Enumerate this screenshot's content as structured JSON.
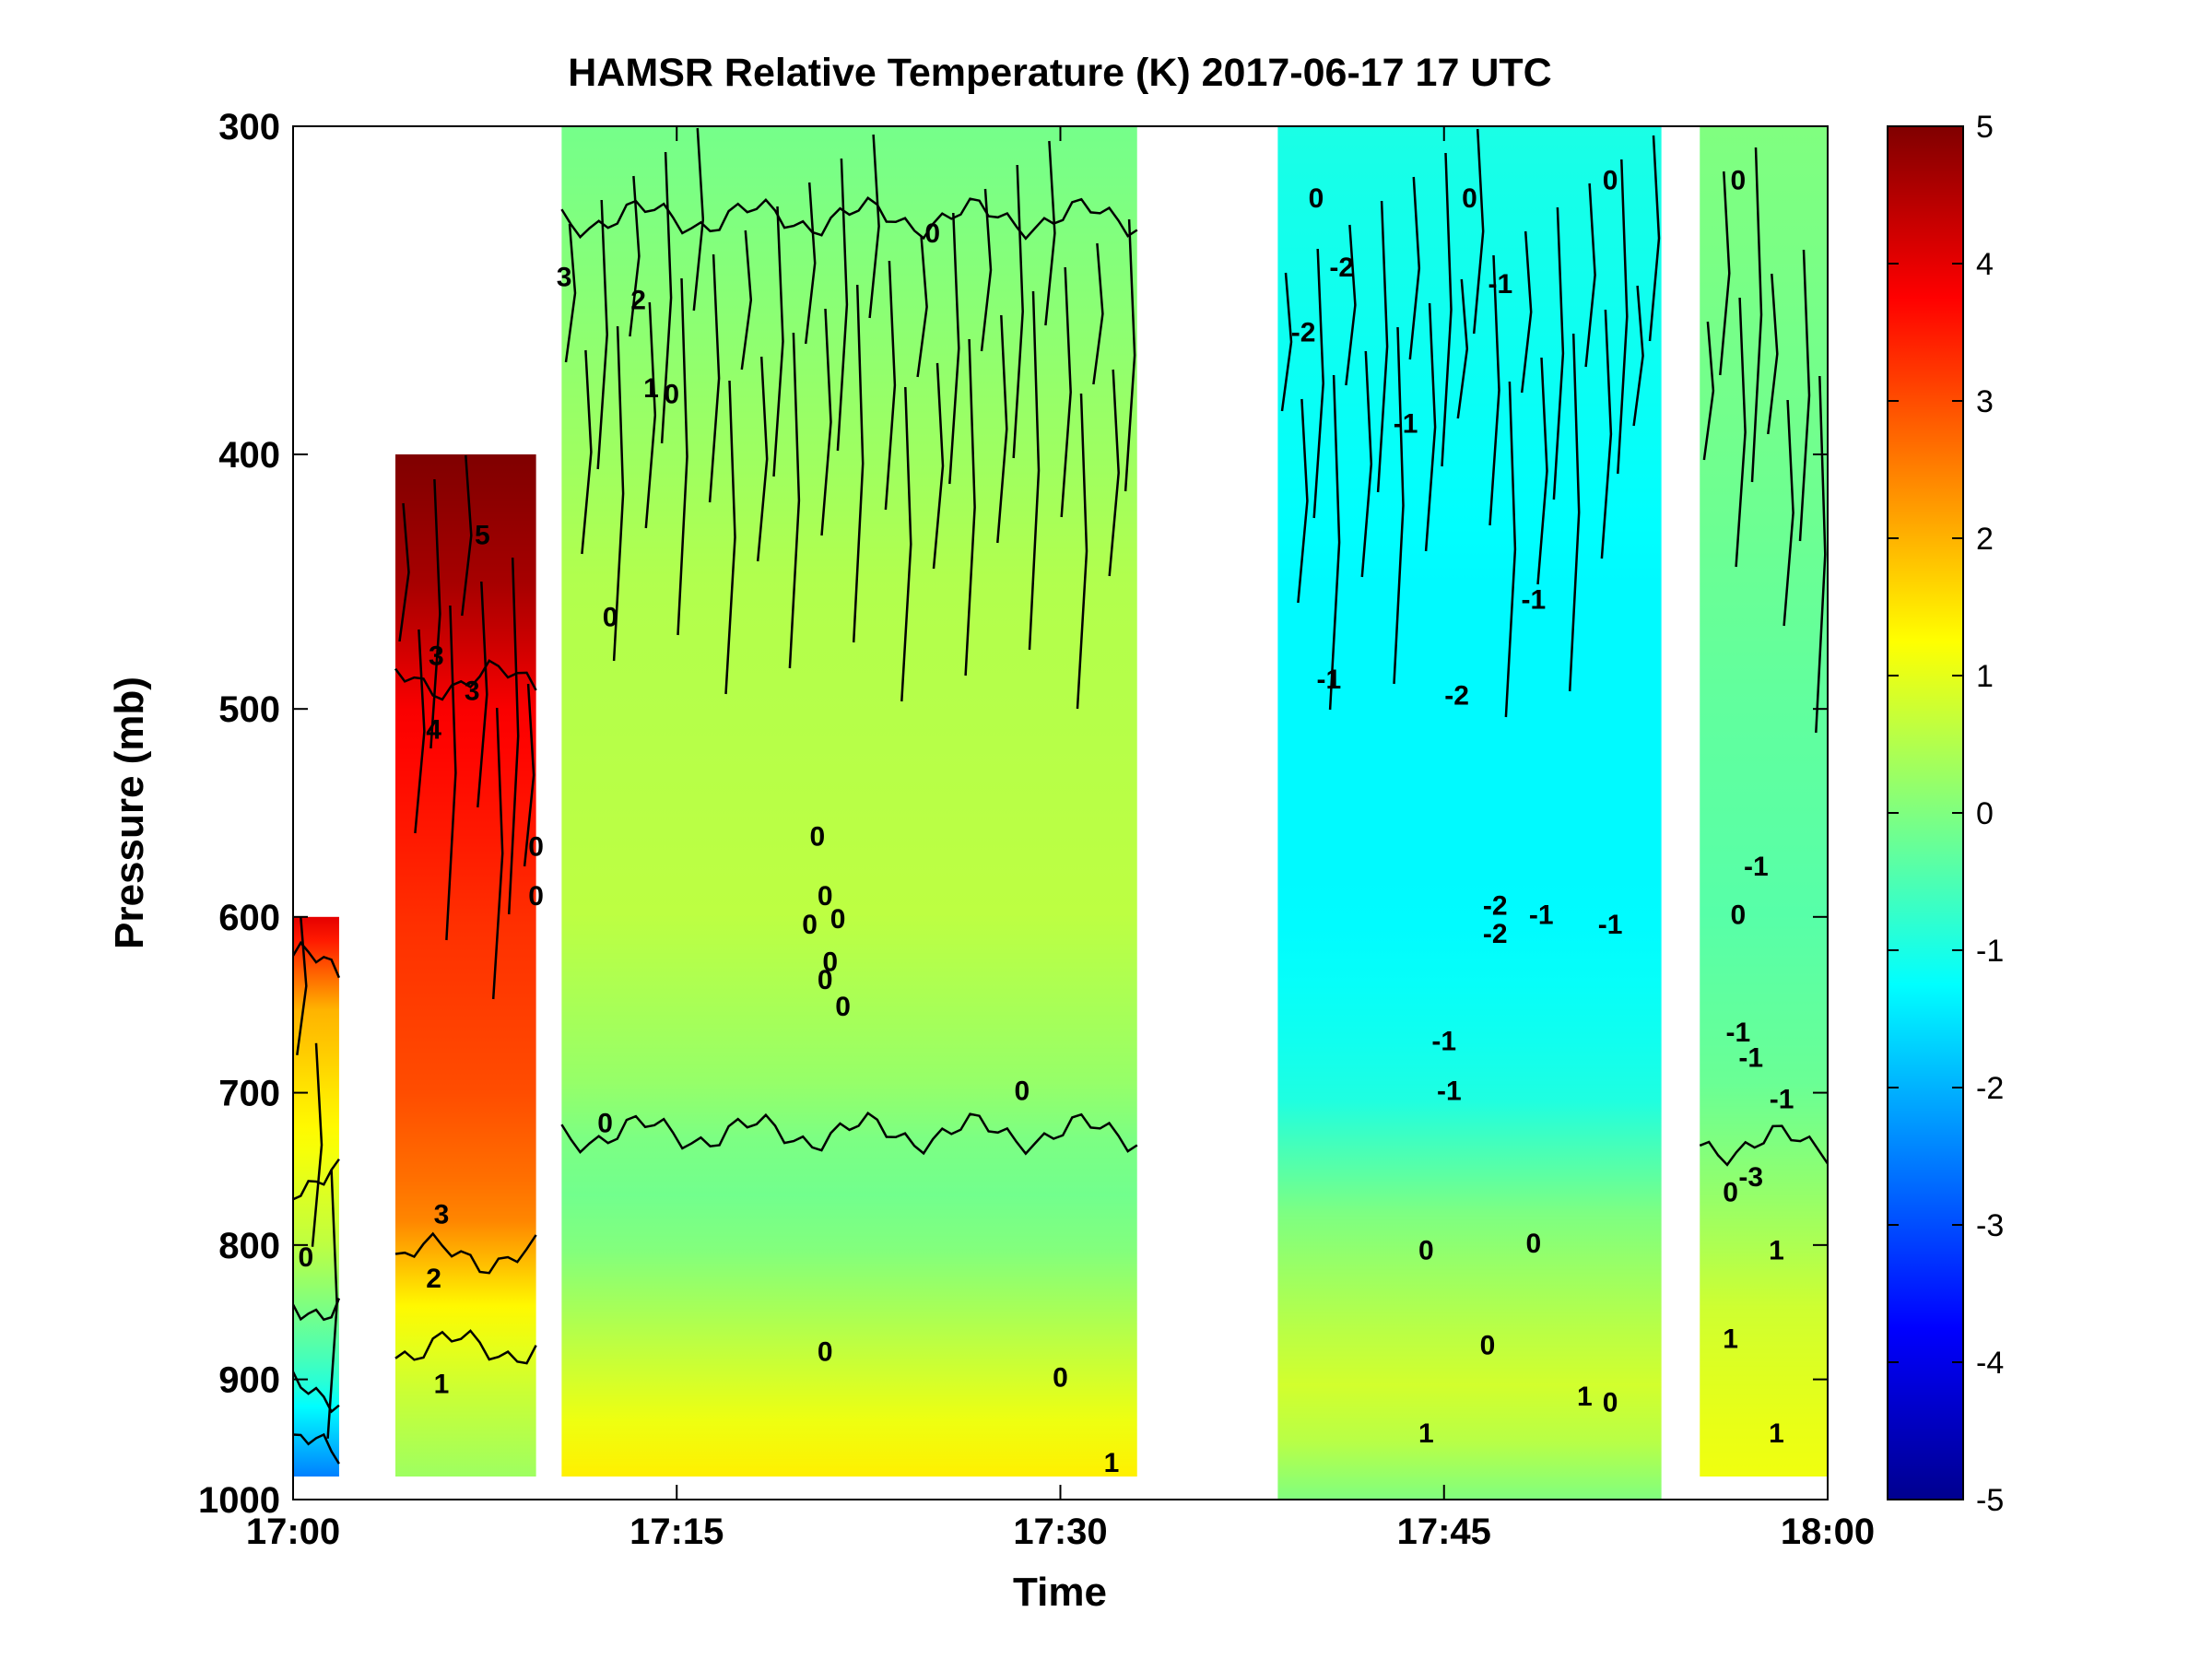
{
  "chart_data": {
    "type": "heatmap",
    "title": "HAMSR  Relative Temperature (K) 2017-06-17 17 UTC",
    "xlabel": "Time",
    "ylabel": "Pressure (mb)",
    "x_unit": "minutes after 17:00 UTC",
    "xlim": [
      0,
      60
    ],
    "ylim": [
      1000,
      300
    ],
    "y_scale": "log (pressure axis, decreasing upward)",
    "x_ticks": [
      {
        "value": 0,
        "label": "17:00"
      },
      {
        "value": 15,
        "label": "17:15"
      },
      {
        "value": 30,
        "label": "17:30"
      },
      {
        "value": 45,
        "label": "17:45"
      },
      {
        "value": 60,
        "label": "18:00"
      }
    ],
    "y_ticks": [
      300,
      400,
      500,
      600,
      700,
      800,
      900,
      1000
    ],
    "colorbar": {
      "min": -5,
      "max": 5,
      "ticks": [
        5,
        4,
        3,
        2,
        1,
        0,
        -1,
        -2,
        -3,
        -4,
        -5
      ],
      "colormap": "jet"
    },
    "contour_levels": [
      -2,
      -1,
      0,
      1,
      2,
      3,
      4
    ],
    "segments": [
      {
        "t_start": 0.0,
        "t_end": 1.8,
        "p_top": 600,
        "p_bottom": 980,
        "profile": [
          [
            600,
            4.0
          ],
          [
            650,
            2.0
          ],
          [
            700,
            1.5
          ],
          [
            800,
            0.6
          ],
          [
            900,
            -0.8
          ],
          [
            980,
            -2.5
          ]
        ]
      },
      {
        "t_start": 4.0,
        "t_end": 9.5,
        "p_top": 400,
        "p_bottom": 980,
        "profile": [
          [
            400,
            5.0
          ],
          [
            450,
            4.6
          ],
          [
            500,
            3.8
          ],
          [
            600,
            3.3
          ],
          [
            700,
            3.0
          ],
          [
            780,
            2.5
          ],
          [
            850,
            1.2
          ],
          [
            900,
            0.8
          ],
          [
            980,
            0.3
          ]
        ]
      },
      {
        "t_start": 10.5,
        "t_end": 33.0,
        "p_top": 300,
        "p_bottom": 980,
        "profile": [
          [
            300,
            -0.1
          ],
          [
            450,
            0.5
          ],
          [
            600,
            0.6
          ],
          [
            700,
            0.2
          ],
          [
            750,
            -0.2
          ],
          [
            800,
            0.0
          ],
          [
            860,
            0.5
          ],
          [
            920,
            1.0
          ],
          [
            980,
            1.4
          ]
        ]
      },
      {
        "t_start": 38.5,
        "t_end": 53.5,
        "p_top": 300,
        "p_bottom": 1000,
        "profile": [
          [
            300,
            -1.0
          ],
          [
            450,
            -1.3
          ],
          [
            600,
            -1.3
          ],
          [
            700,
            -1.0
          ],
          [
            780,
            0.0
          ],
          [
            850,
            0.5
          ],
          [
            920,
            0.9
          ],
          [
            1000,
            0.0
          ]
        ]
      },
      {
        "t_start": 55.0,
        "t_end": 60.0,
        "p_top": 300,
        "p_bottom": 980,
        "profile": [
          [
            300,
            0.0
          ],
          [
            500,
            -0.3
          ],
          [
            600,
            -0.4
          ],
          [
            700,
            -0.2
          ],
          [
            780,
            0.3
          ],
          [
            850,
            0.8
          ],
          [
            920,
            1.0
          ],
          [
            980,
            1.1
          ]
        ]
      }
    ],
    "contour_labels": [
      {
        "text": "0",
        "t": 25.0,
        "p": 330
      },
      {
        "text": "1",
        "t": 14.0,
        "p": 378
      },
      {
        "text": "0",
        "t": 14.8,
        "p": 380
      },
      {
        "text": "2",
        "t": 13.5,
        "p": 350
      },
      {
        "text": "3",
        "t": 10.6,
        "p": 343
      },
      {
        "text": "0",
        "t": 12.4,
        "p": 462
      },
      {
        "text": "0",
        "t": 21.0,
        "p": 625
      },
      {
        "text": "0",
        "t": 20.2,
        "p": 605
      },
      {
        "text": "0",
        "t": 20.5,
        "p": 560
      },
      {
        "text": "0",
        "t": 20.8,
        "p": 590
      },
      {
        "text": "0",
        "t": 21.3,
        "p": 602
      },
      {
        "text": "0",
        "t": 21.5,
        "p": 650
      },
      {
        "text": "0",
        "t": 20.8,
        "p": 635
      },
      {
        "text": "0",
        "t": 20.8,
        "p": 880
      },
      {
        "text": "0",
        "t": 9.5,
        "p": 590
      },
      {
        "text": "0",
        "t": 9.5,
        "p": 565
      },
      {
        "text": "0",
        "t": 12.2,
        "p": 720
      },
      {
        "text": "0",
        "t": 28.5,
        "p": 700
      },
      {
        "text": "0",
        "t": 30.0,
        "p": 900
      },
      {
        "text": "1",
        "t": 32.0,
        "p": 970
      },
      {
        "text": "5",
        "t": 7.4,
        "p": 430
      },
      {
        "text": "3",
        "t": 7.0,
        "p": 493
      },
      {
        "text": "4",
        "t": 5.5,
        "p": 510
      },
      {
        "text": "3",
        "t": 5.6,
        "p": 478
      },
      {
        "text": "3",
        "t": 5.8,
        "p": 780
      },
      {
        "text": "2",
        "t": 5.5,
        "p": 825
      },
      {
        "text": "1",
        "t": 5.8,
        "p": 905
      },
      {
        "text": "0",
        "t": 0.5,
        "p": 810
      },
      {
        "text": "-2",
        "t": 41.0,
        "p": 340
      },
      {
        "text": "-2",
        "t": 39.5,
        "p": 360
      },
      {
        "text": "0",
        "t": 40.0,
        "p": 320
      },
      {
        "text": "0",
        "t": 46.0,
        "p": 320
      },
      {
        "text": "0",
        "t": 51.5,
        "p": 315
      },
      {
        "text": "-1",
        "t": 47.2,
        "p": 345
      },
      {
        "text": "-1",
        "t": 43.5,
        "p": 390
      },
      {
        "text": "-1",
        "t": 48.5,
        "p": 455
      },
      {
        "text": "-1",
        "t": 40.5,
        "p": 488
      },
      {
        "text": "-2",
        "t": 45.5,
        "p": 495
      },
      {
        "text": "-2",
        "t": 47.0,
        "p": 595
      },
      {
        "text": "-2",
        "t": 47.0,
        "p": 610
      },
      {
        "text": "-1",
        "t": 48.8,
        "p": 600
      },
      {
        "text": "-1",
        "t": 45.0,
        "p": 670
      },
      {
        "text": "-1",
        "t": 45.2,
        "p": 700
      },
      {
        "text": "-1",
        "t": 51.5,
        "p": 605
      },
      {
        "text": "0",
        "t": 44.3,
        "p": 805
      },
      {
        "text": "0",
        "t": 48.5,
        "p": 800
      },
      {
        "text": "0",
        "t": 46.7,
        "p": 875
      },
      {
        "text": "1",
        "t": 44.3,
        "p": 945
      },
      {
        "text": "1",
        "t": 50.5,
        "p": 915
      },
      {
        "text": "0",
        "t": 51.5,
        "p": 920
      },
      {
        "text": "0",
        "t": 56.5,
        "p": 315
      },
      {
        "text": "-1",
        "t": 57.2,
        "p": 575
      },
      {
        "text": "0",
        "t": 56.5,
        "p": 600
      },
      {
        "text": "-1",
        "t": 56.5,
        "p": 665
      },
      {
        "text": "-1",
        "t": 57.0,
        "p": 680
      },
      {
        "text": "-1",
        "t": 58.2,
        "p": 705
      },
      {
        "text": "-3",
        "t": 57.0,
        "p": 755
      },
      {
        "text": "0",
        "t": 56.2,
        "p": 765
      },
      {
        "text": "1",
        "t": 58.0,
        "p": 805
      },
      {
        "text": "1",
        "t": 56.2,
        "p": 870
      },
      {
        "text": "1",
        "t": 58.0,
        "p": 945
      }
    ]
  }
}
